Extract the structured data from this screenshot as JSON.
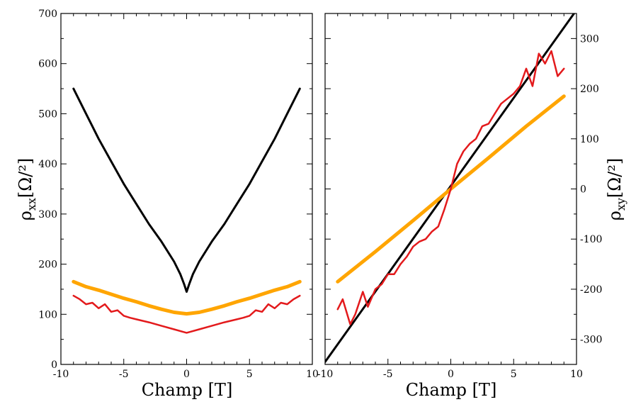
{
  "chart_data": [
    {
      "type": "line",
      "xlabel": "Champ [T]",
      "ylabel": {
        "main": "ρ",
        "sub": "xx",
        "unit": "[Ω/²]"
      },
      "xlim": [
        -10,
        10
      ],
      "ylim": [
        0,
        700
      ],
      "xticks": [
        -10,
        -5,
        0,
        5,
        10
      ],
      "xtick_labels": [
        "-10",
        "-5",
        "0",
        "5",
        "10"
      ],
      "yticks": [
        0,
        100,
        200,
        300,
        400,
        500,
        600,
        700
      ],
      "ytick_labels": [
        "0",
        "100",
        "200",
        "300",
        "400",
        "500",
        "600",
        "700"
      ],
      "grid": false,
      "series": [
        {
          "color": "#000000",
          "x": [
            -9,
            -8,
            -7,
            -6,
            -5,
            -4,
            -3,
            -2,
            -1,
            -0.5,
            -0.2,
            0,
            0.2,
            0.5,
            1,
            2,
            3,
            4,
            5,
            6,
            7,
            8,
            9
          ],
          "y": [
            550,
            500,
            450,
            405,
            360,
            320,
            280,
            245,
            205,
            180,
            160,
            145,
            160,
            180,
            205,
            245,
            280,
            320,
            360,
            405,
            450,
            500,
            550
          ]
        },
        {
          "color": "#ffa500",
          "x": [
            -9,
            -8,
            -7,
            -6,
            -5,
            -4,
            -3,
            -2,
            -1,
            0,
            1,
            2,
            3,
            4,
            5,
            6,
            7,
            8,
            9
          ],
          "y": [
            165,
            155,
            148,
            140,
            132,
            125,
            117,
            110,
            104,
            101,
            104,
            110,
            117,
            125,
            132,
            140,
            148,
            155,
            165
          ]
        },
        {
          "color": "#e31a1c",
          "x": [
            -9,
            -8.5,
            -8,
            -7.5,
            -7,
            -6.5,
            -6,
            -5.5,
            -5,
            -4.5,
            -4,
            -3,
            -2,
            -1,
            0,
            1,
            2,
            3,
            4,
            4.5,
            5,
            5.5,
            6,
            6.5,
            7,
            7.5,
            8,
            8.5,
            9
          ],
          "y": [
            137,
            130,
            120,
            123,
            112,
            120,
            105,
            108,
            97,
            93,
            90,
            84,
            77,
            70,
            63,
            70,
            77,
            84,
            90,
            93,
            97,
            108,
            105,
            120,
            112,
            123,
            120,
            130,
            137
          ]
        }
      ]
    },
    {
      "type": "line",
      "xlabel": "Champ [T]",
      "ylabel": {
        "main": "ρ",
        "sub": "xy",
        "unit": "[Ω/²]"
      },
      "xlim": [
        -10,
        10
      ],
      "ylim": [
        -350,
        350
      ],
      "xticks": [
        -10,
        -5,
        0,
        5,
        10
      ],
      "xtick_labels": [
        "-10",
        "-5",
        "0",
        "5",
        "10"
      ],
      "yticks": [
        -300,
        -200,
        -100,
        0,
        100,
        200,
        300
      ],
      "ytick_labels": [
        "-300",
        "-200",
        "-100",
        "0",
        "100",
        "200",
        "300"
      ],
      "grid": false,
      "series": [
        {
          "color": "#000000",
          "x": [
            -10,
            9.8
          ],
          "y": [
            -345,
            350
          ]
        },
        {
          "color": "#ffa500",
          "x": [
            -9,
            -6,
            -3,
            0,
            3,
            6,
            9
          ],
          "y": [
            -185,
            -125,
            -63,
            0,
            62,
            125,
            185
          ]
        },
        {
          "color": "#e31a1c",
          "x": [
            -9,
            -8.6,
            -8,
            -7.6,
            -7,
            -6.6,
            -6,
            -5.5,
            -5,
            -4.5,
            -4,
            -3.5,
            -3,
            -2.5,
            -2,
            -1.5,
            -1,
            -0.5,
            0,
            0.5,
            1,
            1.5,
            2,
            2.5,
            3,
            3.5,
            4,
            4.5,
            5,
            5.5,
            6,
            6.5,
            7,
            7.5,
            8,
            8.5,
            9
          ],
          "y": [
            -240,
            -220,
            -270,
            -250,
            -205,
            -235,
            -200,
            -190,
            -170,
            -170,
            -150,
            -135,
            -115,
            -105,
            -100,
            -85,
            -75,
            -40,
            0,
            50,
            75,
            90,
            100,
            125,
            130,
            150,
            170,
            180,
            190,
            205,
            240,
            205,
            270,
            250,
            275,
            225,
            240
          ]
        }
      ]
    }
  ]
}
